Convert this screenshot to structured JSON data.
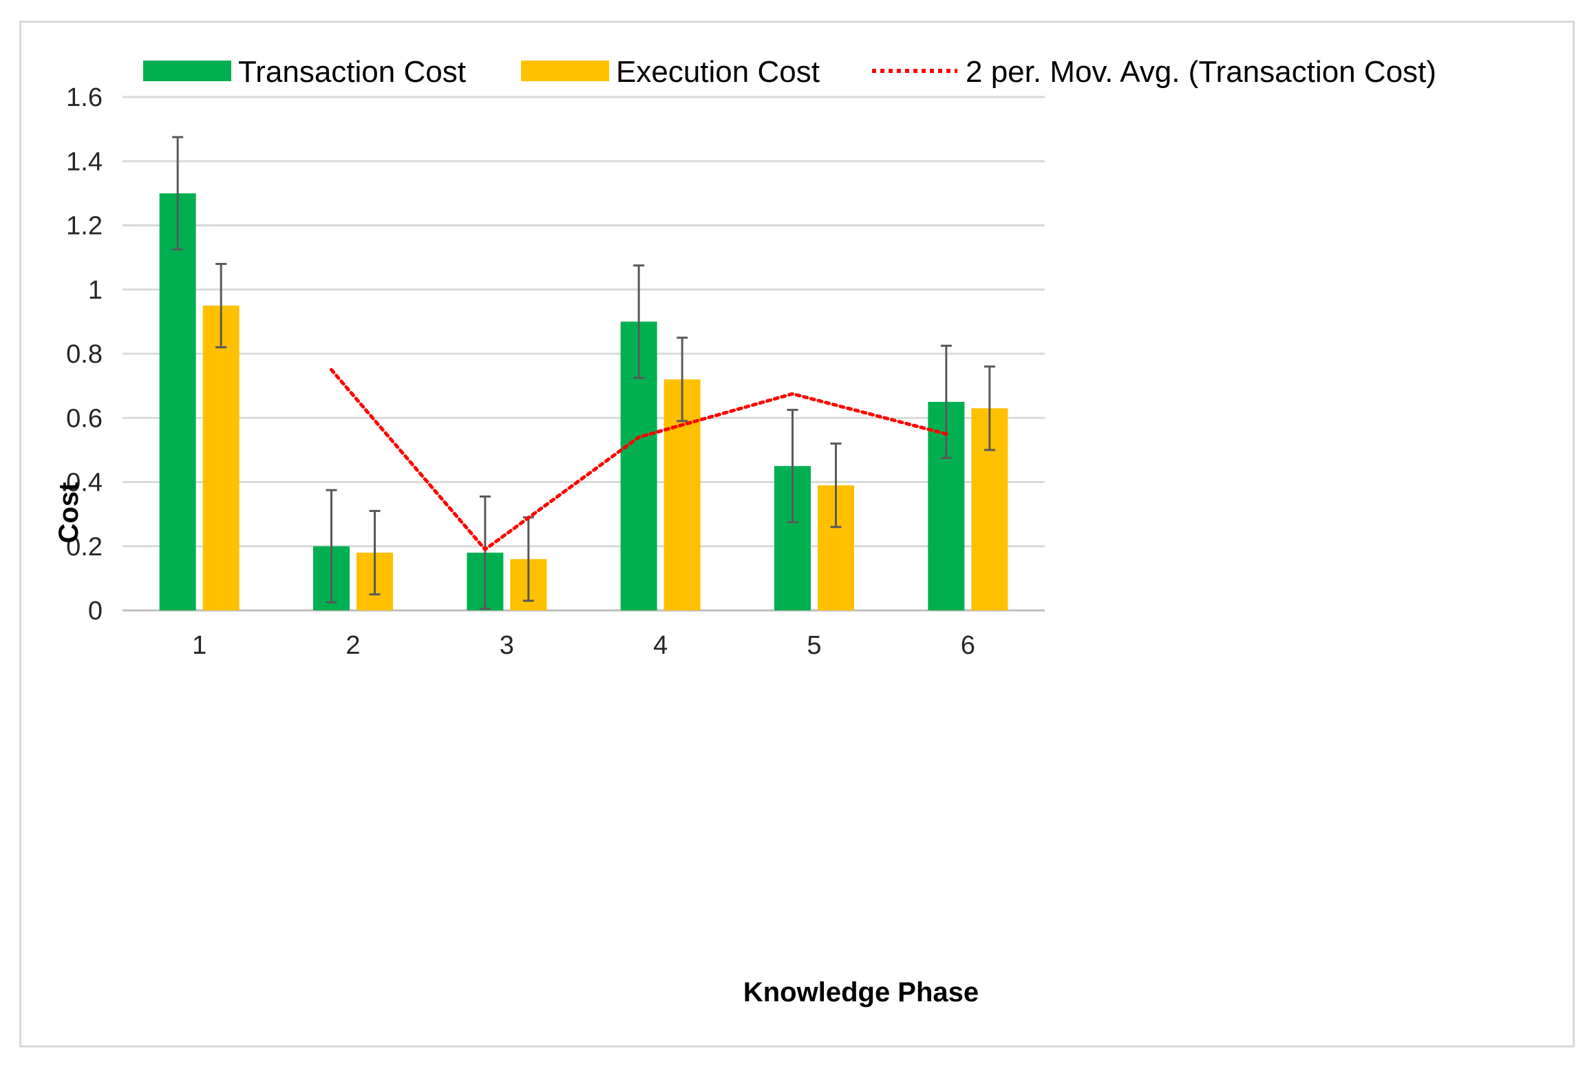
{
  "chart_data": {
    "type": "bar",
    "title": "",
    "xlabel": "Knowledge Phase",
    "ylabel": "Cost",
    "categories": [
      "1",
      "2",
      "3",
      "4",
      "5",
      "6"
    ],
    "ylim": [
      0,
      1.6
    ],
    "yticks": [
      0,
      0.2,
      0.4,
      0.6,
      0.8,
      1,
      1.2,
      1.4,
      1.6
    ],
    "ytick_labels": [
      "0",
      "0.2",
      "0.4",
      "0.6",
      "0.8",
      "1",
      "1.2",
      "1.4",
      "1.6"
    ],
    "grid": true,
    "legend_position": "top",
    "series": [
      {
        "name": "Transaction Cost",
        "color": "#00b050",
        "values": [
          1.3,
          0.2,
          0.18,
          0.9,
          0.45,
          0.65
        ],
        "errors": [
          0.175,
          0.175,
          0.175,
          0.175,
          0.175,
          0.175
        ]
      },
      {
        "name": "Execution Cost",
        "color": "#ffc000",
        "values": [
          0.95,
          0.18,
          0.16,
          0.72,
          0.39,
          0.63
        ],
        "errors": [
          0.13,
          0.13,
          0.13,
          0.13,
          0.13,
          0.13
        ]
      }
    ],
    "trendline": {
      "name": "2 per. Mov. Avg. (Transaction Cost)",
      "color": "#ff0000",
      "style": "dotted",
      "based_on": "Transaction Cost",
      "values": [
        null,
        0.75,
        0.19,
        0.54,
        0.675,
        0.55
      ]
    }
  }
}
